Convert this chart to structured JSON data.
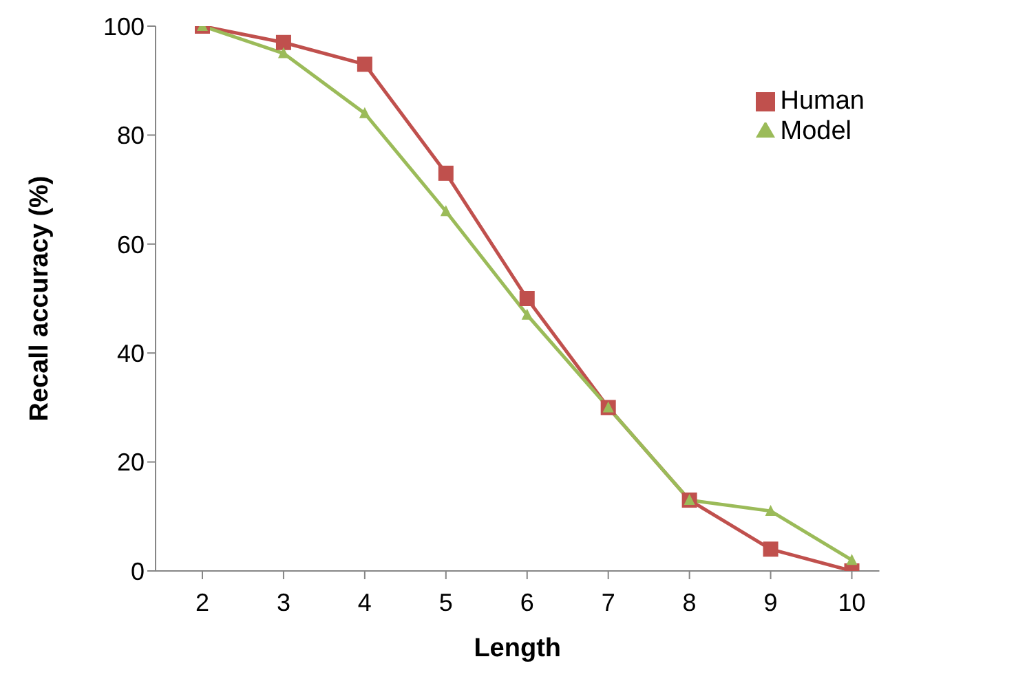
{
  "chart_data": {
    "type": "line",
    "xlabel": "Length",
    "ylabel": "Recall accuracy (%)",
    "categories": [
      "2",
      "3",
      "4",
      "5",
      "6",
      "7",
      "8",
      "9",
      "10"
    ],
    "series": [
      {
        "name": "Human",
        "color": "#c0504d",
        "marker": "square",
        "values": [
          100,
          97,
          93,
          73,
          50,
          30,
          13,
          4,
          0
        ]
      },
      {
        "name": "Model",
        "color": "#9bbb59",
        "marker": "triangle",
        "values": [
          100,
          95,
          84,
          66,
          47,
          30,
          13,
          11,
          2
        ]
      }
    ],
    "ylim": [
      0,
      100
    ],
    "yticks": [
      0,
      20,
      40,
      60,
      80,
      100
    ],
    "grid": false,
    "legend": "top right"
  }
}
